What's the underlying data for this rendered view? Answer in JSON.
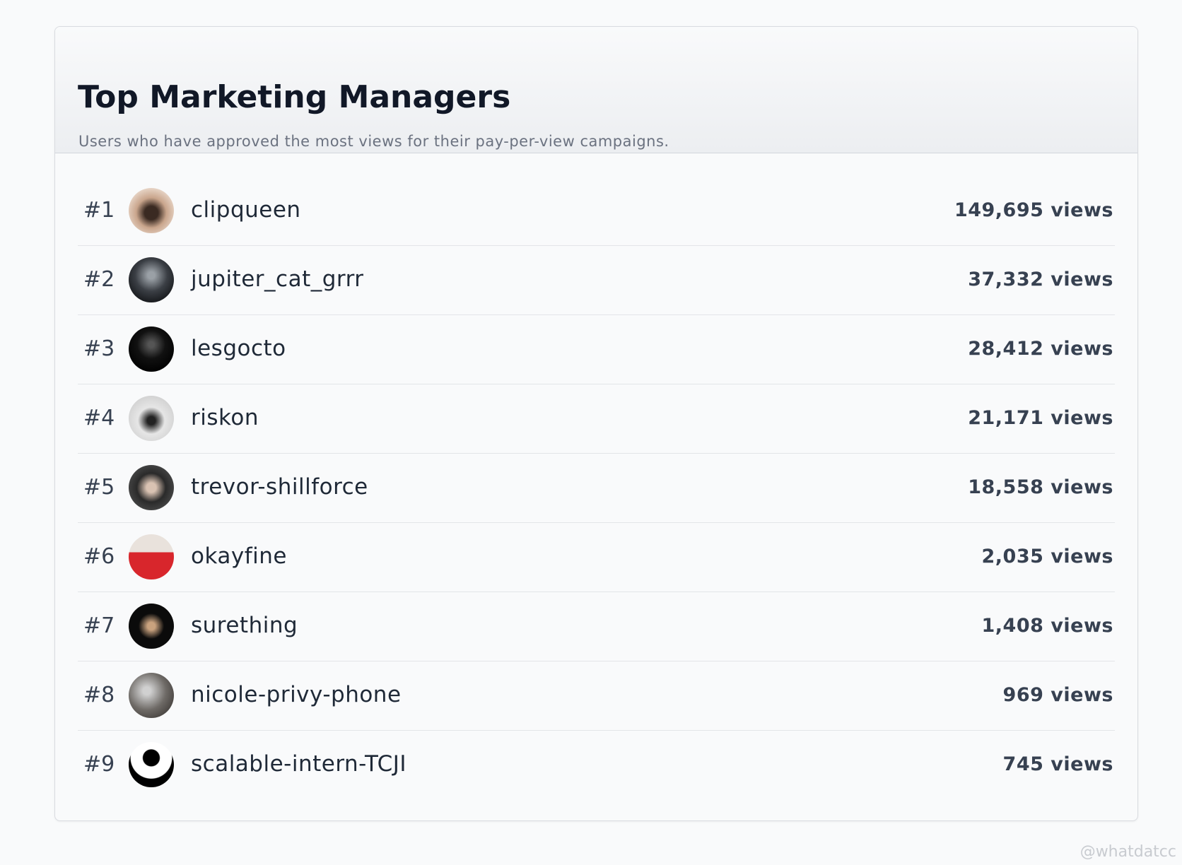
{
  "header": {
    "title": "Top Marketing Managers",
    "subtitle": "Users who have approved the most views for their pay-per-view campaigns."
  },
  "rows": [
    {
      "rank": "#1",
      "name": "clipqueen",
      "views": "149,695 views"
    },
    {
      "rank": "#2",
      "name": "jupiter_cat_grrr",
      "views": "37,332 views"
    },
    {
      "rank": "#3",
      "name": "lesgocto",
      "views": "28,412 views"
    },
    {
      "rank": "#4",
      "name": "riskon",
      "views": "21,171 views"
    },
    {
      "rank": "#5",
      "name": "trevor-shillforce",
      "views": "18,558 views"
    },
    {
      "rank": "#6",
      "name": "okayfine",
      "views": "2,035 views"
    },
    {
      "rank": "#7",
      "name": "surething",
      "views": "1,408 views"
    },
    {
      "rank": "#8",
      "name": "nicole-privy-phone",
      "views": "969 views"
    },
    {
      "rank": "#9",
      "name": "scalable-intern-TCJI",
      "views": "745 views"
    }
  ],
  "watermark": "@whatdatcc"
}
